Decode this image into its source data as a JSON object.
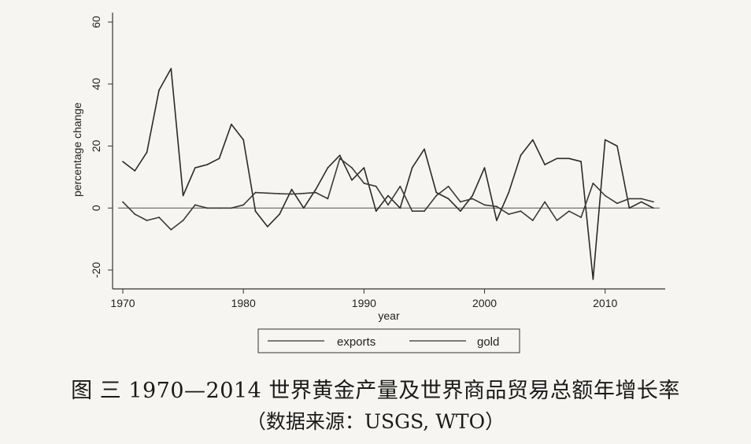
{
  "chart_data": {
    "type": "line",
    "xlabel": "year",
    "ylabel": "percentage change",
    "xlim": [
      1970,
      2014
    ],
    "ylim": [
      -25,
      63
    ],
    "xticks": [
      1970,
      1980,
      1990,
      2000,
      2010
    ],
    "yticks": [
      -20,
      0,
      20,
      40,
      60
    ],
    "x": [
      1970,
      1971,
      1972,
      1973,
      1974,
      1975,
      1976,
      1977,
      1978,
      1979,
      1980,
      1981,
      1982,
      1983,
      1984,
      1985,
      1986,
      1987,
      1988,
      1989,
      1990,
      1991,
      1992,
      1993,
      1994,
      1995,
      1996,
      1997,
      1998,
      1999,
      2000,
      2001,
      2002,
      2003,
      2004,
      2005,
      2006,
      2007,
      2008,
      2009,
      2010,
      2011,
      2012,
      2013,
      2014
    ],
    "series": [
      {
        "name": "exports",
        "values": [
          15,
          12,
          18,
          38,
          45,
          4,
          13,
          14,
          16,
          27,
          22,
          -1,
          -6,
          -2,
          6,
          0,
          6,
          13,
          17,
          9,
          13,
          -1,
          4,
          0,
          13,
          19,
          5,
          3,
          -1,
          4,
          13,
          -4,
          5,
          17,
          22,
          14,
          16,
          16,
          15,
          -23,
          22,
          20,
          0,
          2,
          0
        ]
      },
      {
        "name": "gold",
        "values": [
          2,
          -2,
          -4,
          -3,
          -7,
          -4,
          1,
          0,
          0,
          0,
          1,
          5,
          4.8,
          4.6,
          4.5,
          4.7,
          5,
          3,
          16,
          13,
          8,
          7,
          1,
          7,
          -1,
          -1,
          4,
          7,
          2,
          3,
          1,
          0.5,
          -2,
          -1,
          -4,
          2,
          -4,
          -1,
          -3,
          8,
          4,
          1.5,
          3,
          3,
          2
        ]
      }
    ],
    "legend": [
      "exports",
      "gold"
    ],
    "legend_position": "bottom"
  },
  "caption": {
    "title": "图 三 1970—2014 世界黄金产量及世界商品贸易总额年增长率",
    "source": "（数据来源：USGS, WTO）"
  }
}
